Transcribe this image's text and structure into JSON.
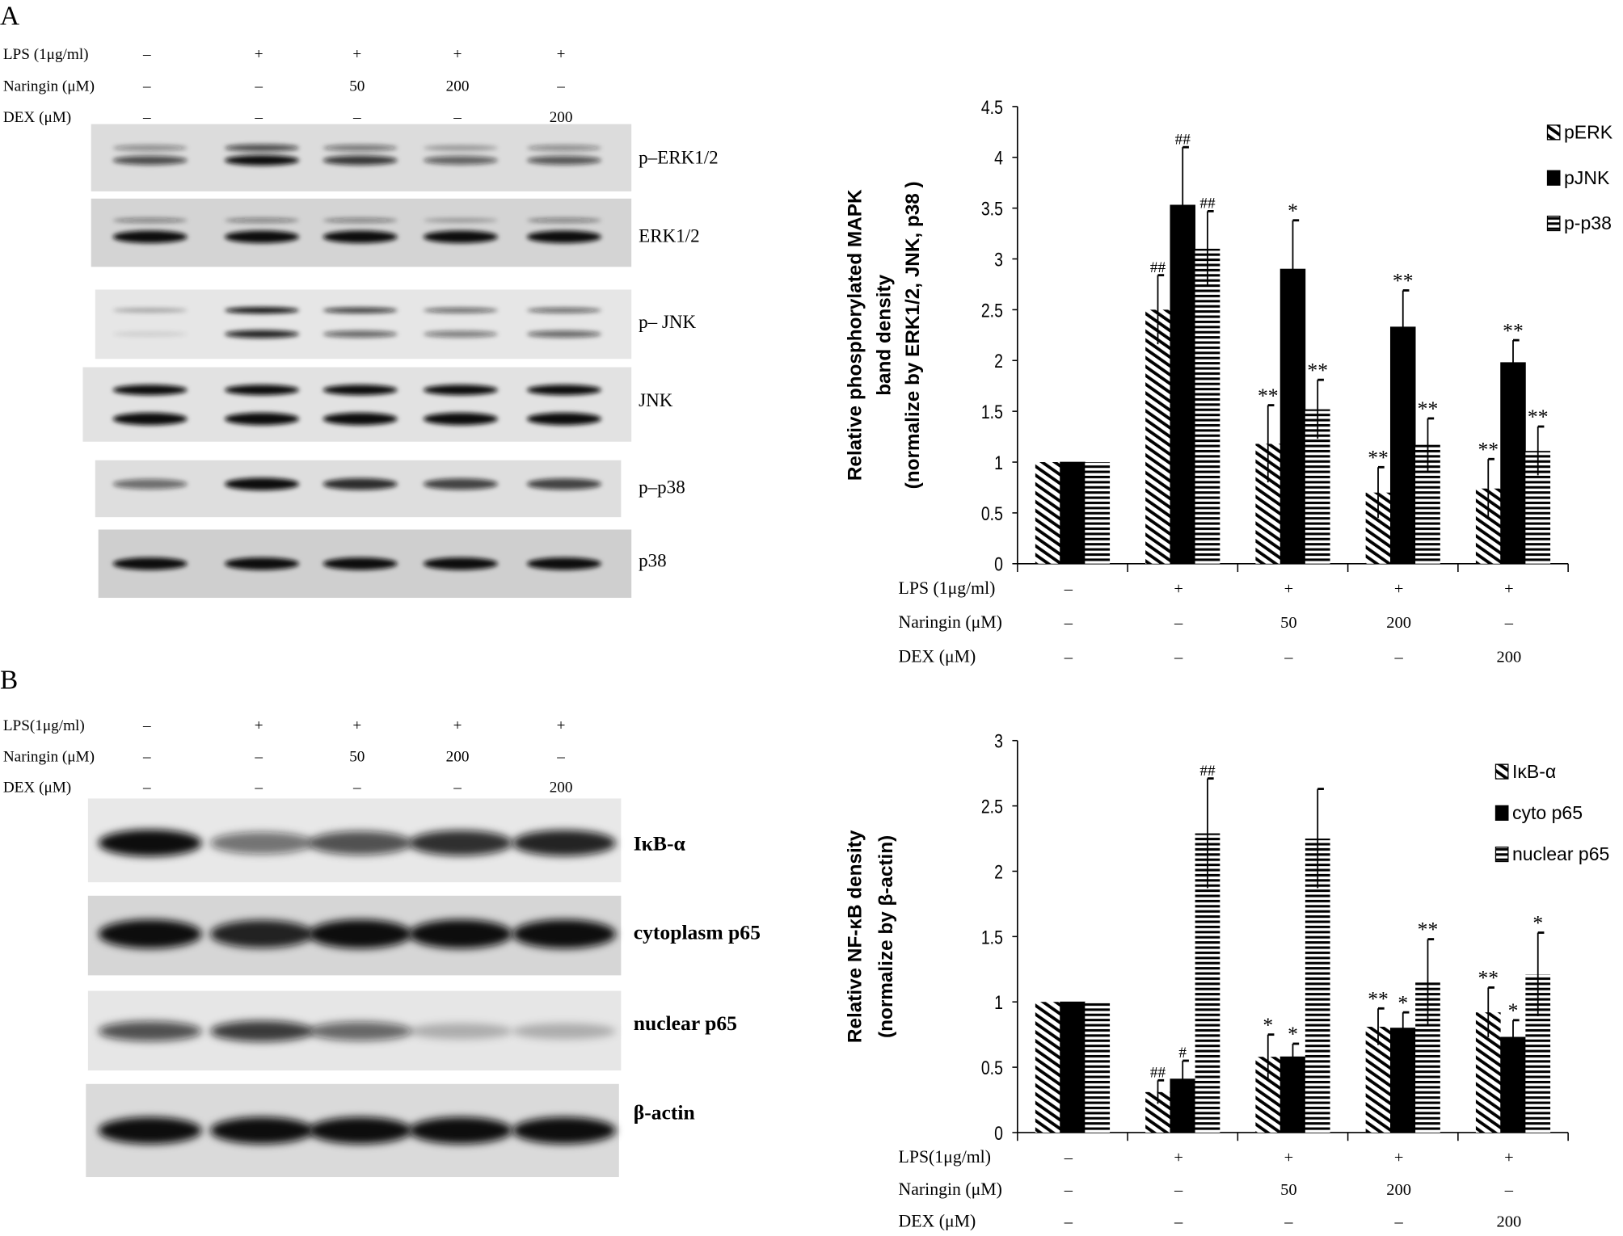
{
  "panel_a": {
    "label": "A",
    "conditions": [
      {
        "label": "LPS (1μg/ml)",
        "values": [
          "–",
          "+",
          "+",
          "+",
          "+"
        ]
      },
      {
        "label": "Naringin (μM)",
        "values": [
          "–",
          "–",
          "50",
          "200",
          "–"
        ]
      },
      {
        "label": "DEX (μM)",
        "values": [
          "–",
          "–",
          "–",
          "–",
          "200"
        ]
      }
    ],
    "blot_labels": [
      "p–ERK1/2",
      "ERK1/2",
      "p– JNK",
      "JNK",
      "p–p38",
      "p38"
    ]
  },
  "panel_b": {
    "label": "B",
    "conditions": [
      {
        "label": "LPS(1μg/ml)",
        "values": [
          "–",
          "+",
          "+",
          "+",
          "+"
        ]
      },
      {
        "label": "Naringin (μM)",
        "values": [
          "–",
          "–",
          "50",
          "200",
          "–"
        ]
      },
      {
        "label": "DEX (μM)",
        "values": [
          "–",
          "–",
          "–",
          "–",
          "200"
        ]
      }
    ],
    "blot_labels": [
      "IκB-α",
      "cytoplasm p65",
      "nuclear p65",
      "β-actin"
    ]
  },
  "chart_data": [
    {
      "type": "bar",
      "title": "",
      "ylabel": [
        "Relative  phosphorylated MAPK",
        "band density",
        "(normalize by ERK1/2, JNK, p38 )"
      ],
      "ylim": [
        0,
        4.5
      ],
      "yticks": [
        "0",
        "0.5",
        "1",
        "1.5",
        "2",
        "2.5",
        "3",
        "3.5",
        "4",
        "4.5"
      ],
      "grid": false,
      "legend_position": "top-right",
      "conditions": [
        {
          "label": "LPS (1μg/ml)",
          "values": [
            "–",
            "+",
            "+",
            "+",
            "+"
          ]
        },
        {
          "label": "Naringin (μM)",
          "values": [
            "–",
            "–",
            "50",
            "200",
            "–"
          ]
        },
        {
          "label": "DEX (μM)",
          "values": [
            "–",
            "–",
            "–",
            "–",
            "200"
          ]
        }
      ],
      "series": [
        {
          "name": "pERK",
          "pattern": "diagonal-hatch",
          "values": [
            1,
            2.5,
            1.18,
            0.7,
            0.74
          ],
          "error": [
            0,
            0.34,
            0.38,
            0.25,
            0.29
          ],
          "annotations": [
            "",
            "##",
            "**",
            "**",
            "**"
          ]
        },
        {
          "name": "pJNK",
          "pattern": "solid-black",
          "values": [
            1,
            3.53,
            2.9,
            2.33,
            1.98
          ],
          "error": [
            0,
            0.57,
            0.48,
            0.36,
            0.22
          ],
          "annotations": [
            "",
            "##",
            "*",
            "**",
            "**"
          ]
        },
        {
          "name": "p-p38",
          "pattern": "horizontal-stripes",
          "values": [
            1,
            3.1,
            1.52,
            1.17,
            1.11
          ],
          "error": [
            0,
            0.37,
            0.29,
            0.26,
            0.24
          ],
          "annotations": [
            "",
            "##",
            "**",
            "**",
            "**"
          ]
        }
      ]
    },
    {
      "type": "bar",
      "title": "",
      "ylabel": [
        "Relative NF-κB density",
        "(normalize by β-actin)"
      ],
      "ylim": [
        0,
        3
      ],
      "yticks": [
        "0",
        "0.5",
        "1",
        "1.5",
        "2",
        "2.5",
        "3"
      ],
      "grid": false,
      "legend_position": "top-right",
      "conditions": [
        {
          "label": "LPS(1μg/ml)",
          "values": [
            "–",
            "+",
            "+",
            "+",
            "+"
          ]
        },
        {
          "label": "Naringin (μM)",
          "values": [
            "–",
            "–",
            "50",
            "200",
            "–"
          ]
        },
        {
          "label": "DEX (μM)",
          "values": [
            "–",
            "–",
            "–",
            "–",
            "200"
          ]
        }
      ],
      "series": [
        {
          "name": "IκB-α",
          "pattern": "diagonal-hatch",
          "values": [
            1,
            0.31,
            0.58,
            0.81,
            0.92
          ],
          "error": [
            0,
            0.09,
            0.17,
            0.14,
            0.19
          ],
          "annotations": [
            "",
            "##",
            "*",
            "**",
            "**"
          ]
        },
        {
          "name": "cyto p65",
          "pattern": "solid-black",
          "values": [
            1,
            0.41,
            0.58,
            0.8,
            0.73
          ],
          "error": [
            0,
            0.14,
            0.1,
            0.12,
            0.13
          ],
          "annotations": [
            "",
            "#",
            "*",
            "*",
            "*"
          ]
        },
        {
          "name": "nuclear p65",
          "pattern": "horizontal-stripes",
          "values": [
            1,
            2.29,
            2.25,
            1.15,
            1.21
          ],
          "error": [
            0,
            0.42,
            0.38,
            0.33,
            0.32
          ],
          "annotations": [
            "",
            "##",
            "",
            "**",
            "*"
          ]
        }
      ]
    }
  ]
}
